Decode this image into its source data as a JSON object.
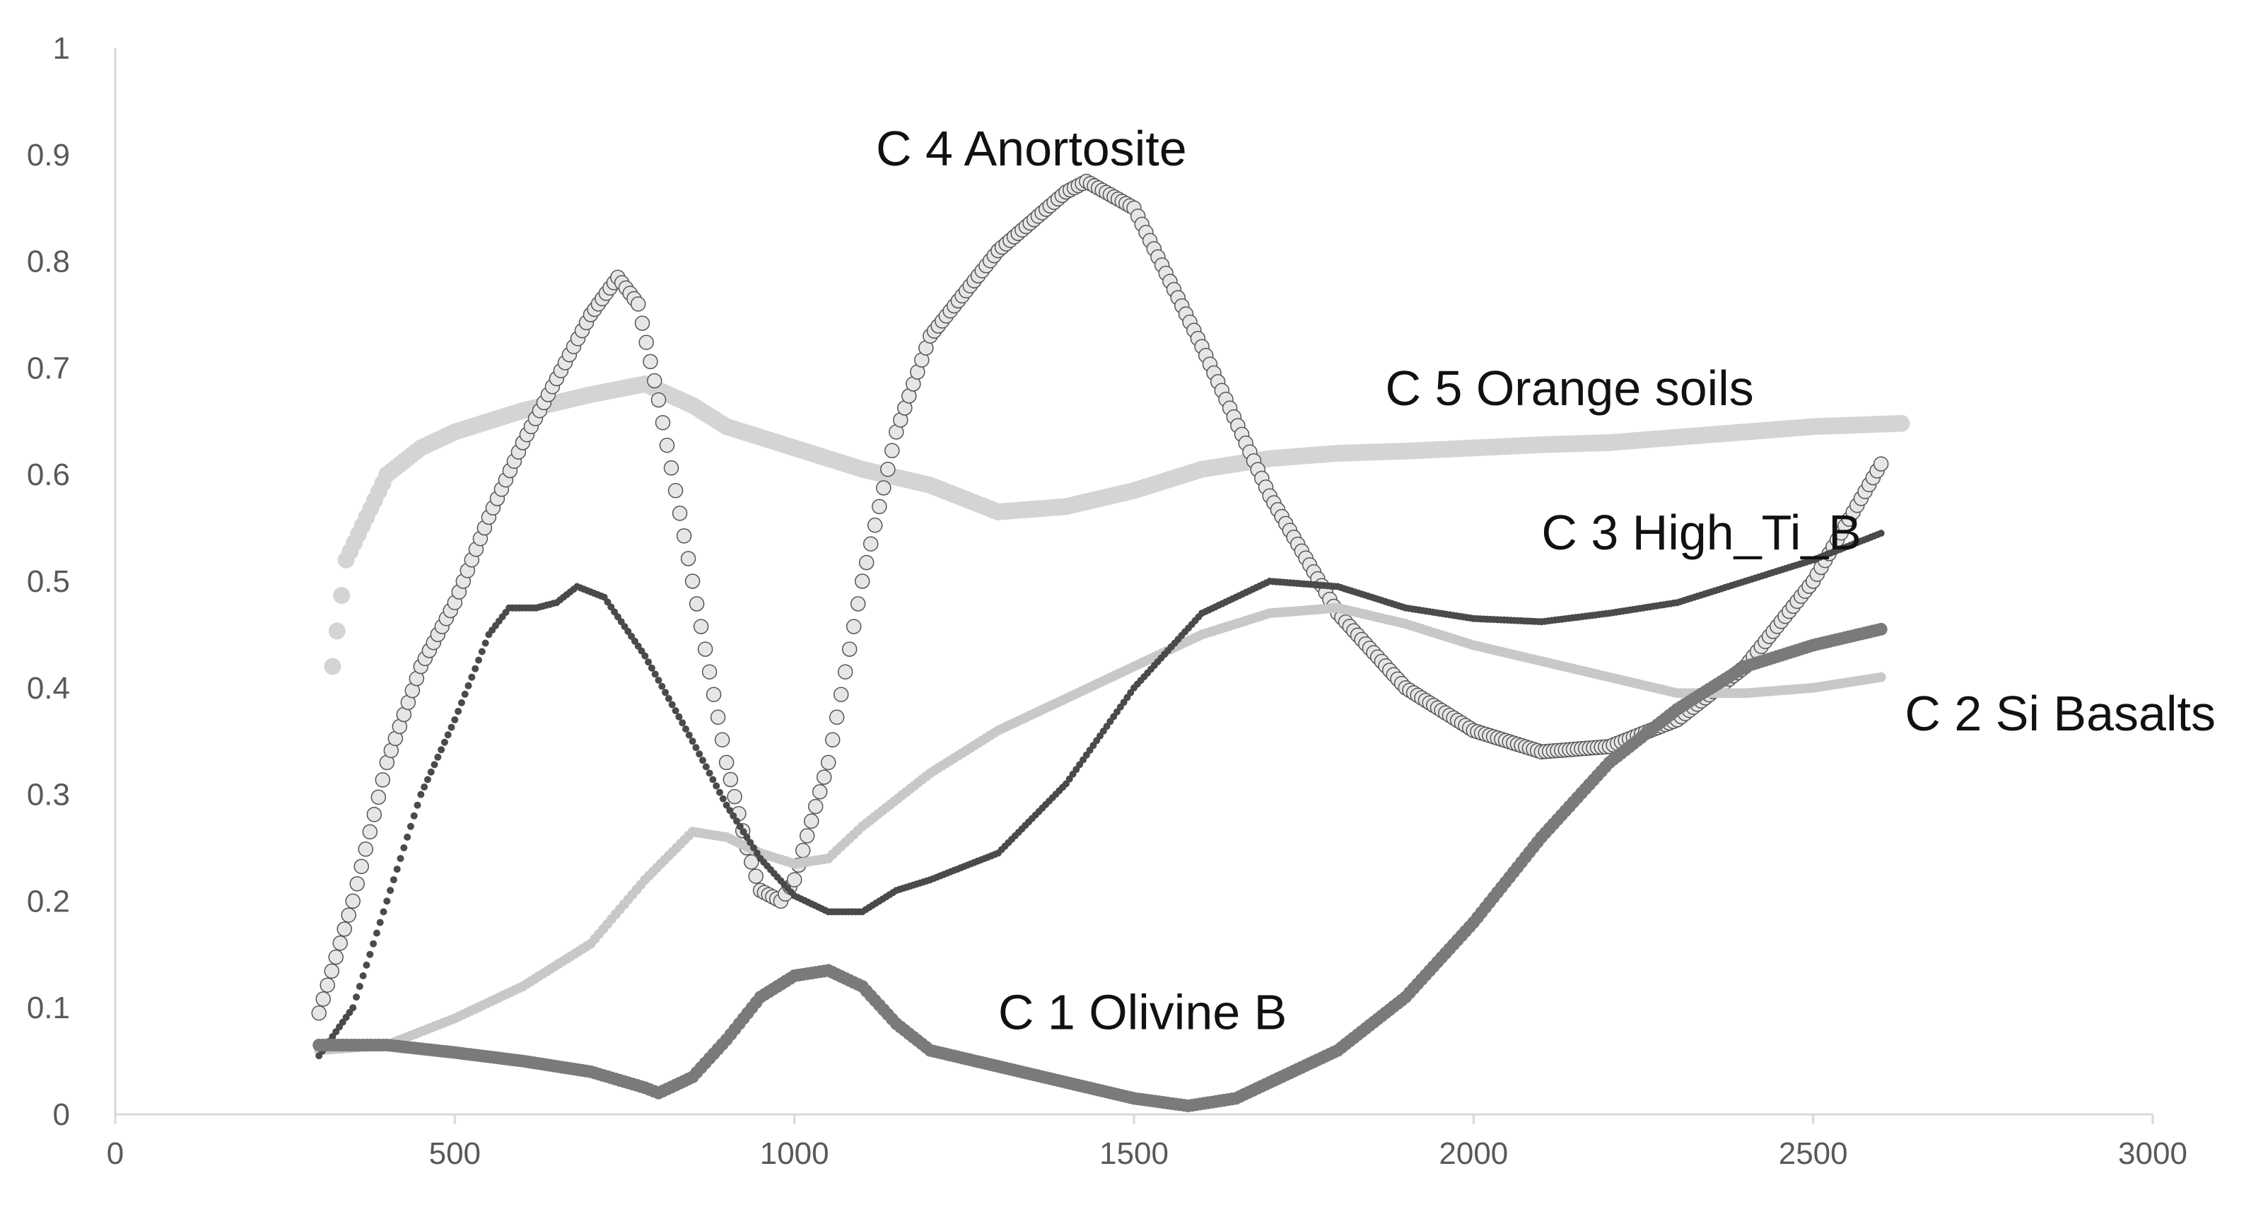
{
  "chart_data": {
    "type": "scatter",
    "title": "",
    "xlabel": "",
    "ylabel": "",
    "xlim": [
      0,
      3000
    ],
    "ylim": [
      0,
      1
    ],
    "grid": false,
    "x_ticks": [
      0,
      500,
      1000,
      1500,
      2000,
      2500,
      3000
    ],
    "y_ticks": [
      0,
      0.1,
      0.2,
      0.3,
      0.4,
      0.5,
      0.6,
      0.7,
      0.8,
      0.9,
      1
    ],
    "x_tick_labels": [
      "0",
      "500",
      "1000",
      "1500",
      "2000",
      "2500",
      "3000"
    ],
    "y_tick_labels": [
      "0",
      "0.1",
      "0.2",
      "0.3",
      "0.4",
      "0.5",
      "0.6",
      "0.7",
      "0.8",
      "0.9",
      "1"
    ],
    "series": [
      {
        "name": "C 1 Olivine B",
        "label": "C 1 Olivine B",
        "label_at": [
          1300,
          0.08
        ],
        "color": "#7a7a7a",
        "points": [
          [
            300,
            0.065
          ],
          [
            400,
            0.065
          ],
          [
            500,
            0.058
          ],
          [
            600,
            0.05
          ],
          [
            700,
            0.04
          ],
          [
            780,
            0.025
          ],
          [
            800,
            0.02
          ],
          [
            850,
            0.035
          ],
          [
            900,
            0.07
          ],
          [
            950,
            0.11
          ],
          [
            1000,
            0.13
          ],
          [
            1050,
            0.135
          ],
          [
            1100,
            0.12
          ],
          [
            1150,
            0.085
          ],
          [
            1200,
            0.06
          ],
          [
            1300,
            0.045
          ],
          [
            1400,
            0.03
          ],
          [
            1500,
            0.015
          ],
          [
            1580,
            0.008
          ],
          [
            1650,
            0.015
          ],
          [
            1700,
            0.03
          ],
          [
            1800,
            0.06
          ],
          [
            1900,
            0.11
          ],
          [
            2000,
            0.18
          ],
          [
            2100,
            0.26
          ],
          [
            2200,
            0.33
          ],
          [
            2300,
            0.38
          ],
          [
            2400,
            0.42
          ],
          [
            2500,
            0.44
          ],
          [
            2600,
            0.455
          ]
        ]
      },
      {
        "name": "C 2 Si Basalts",
        "label": "C 2 Si Basalts",
        "label_at": [
          2635,
          0.36
        ],
        "color": "#c8c8c8",
        "points": [
          [
            300,
            0.06
          ],
          [
            400,
            0.065
          ],
          [
            500,
            0.09
          ],
          [
            600,
            0.12
          ],
          [
            700,
            0.16
          ],
          [
            780,
            0.22
          ],
          [
            850,
            0.265
          ],
          [
            900,
            0.26
          ],
          [
            950,
            0.245
          ],
          [
            1000,
            0.235
          ],
          [
            1050,
            0.24
          ],
          [
            1100,
            0.27
          ],
          [
            1200,
            0.32
          ],
          [
            1300,
            0.36
          ],
          [
            1400,
            0.39
          ],
          [
            1500,
            0.42
          ],
          [
            1600,
            0.45
          ],
          [
            1700,
            0.47
          ],
          [
            1800,
            0.475
          ],
          [
            1900,
            0.46
          ],
          [
            2000,
            0.44
          ],
          [
            2100,
            0.425
          ],
          [
            2200,
            0.41
          ],
          [
            2300,
            0.395
          ],
          [
            2400,
            0.395
          ],
          [
            2500,
            0.4
          ],
          [
            2600,
            0.41
          ]
        ]
      },
      {
        "name": "C 3 High_Ti_B",
        "label": "C 3 High_Ti_B",
        "label_at": [
          2100,
          0.53
        ],
        "color": "#4a4a4a",
        "points": [
          [
            300,
            0.055
          ],
          [
            350,
            0.1
          ],
          [
            400,
            0.2
          ],
          [
            450,
            0.3
          ],
          [
            500,
            0.37
          ],
          [
            550,
            0.45
          ],
          [
            580,
            0.475
          ],
          [
            620,
            0.475
          ],
          [
            650,
            0.48
          ],
          [
            680,
            0.495
          ],
          [
            720,
            0.485
          ],
          [
            780,
            0.43
          ],
          [
            850,
            0.35
          ],
          [
            900,
            0.29
          ],
          [
            950,
            0.24
          ],
          [
            1000,
            0.205
          ],
          [
            1050,
            0.19
          ],
          [
            1100,
            0.19
          ],
          [
            1150,
            0.21
          ],
          [
            1200,
            0.22
          ],
          [
            1300,
            0.245
          ],
          [
            1400,
            0.31
          ],
          [
            1500,
            0.4
          ],
          [
            1600,
            0.47
          ],
          [
            1700,
            0.5
          ],
          [
            1800,
            0.495
          ],
          [
            1900,
            0.475
          ],
          [
            2000,
            0.465
          ],
          [
            2100,
            0.462
          ],
          [
            2200,
            0.47
          ],
          [
            2300,
            0.48
          ],
          [
            2400,
            0.5
          ],
          [
            2500,
            0.52
          ],
          [
            2600,
            0.545
          ]
        ]
      },
      {
        "name": "C 4 Anortosite",
        "label": "C 4 Anortosite",
        "label_at": [
          1120,
          0.89
        ],
        "color": "#9a9a9a",
        "points": [
          [
            300,
            0.095
          ],
          [
            350,
            0.2
          ],
          [
            400,
            0.33
          ],
          [
            450,
            0.42
          ],
          [
            500,
            0.48
          ],
          [
            550,
            0.56
          ],
          [
            600,
            0.63
          ],
          [
            650,
            0.69
          ],
          [
            700,
            0.75
          ],
          [
            740,
            0.785
          ],
          [
            770,
            0.76
          ],
          [
            800,
            0.67
          ],
          [
            850,
            0.5
          ],
          [
            900,
            0.33
          ],
          [
            930,
            0.25
          ],
          [
            950,
            0.21
          ],
          [
            980,
            0.2
          ],
          [
            1000,
            0.22
          ],
          [
            1050,
            0.33
          ],
          [
            1100,
            0.5
          ],
          [
            1150,
            0.64
          ],
          [
            1200,
            0.73
          ],
          [
            1300,
            0.81
          ],
          [
            1400,
            0.865
          ],
          [
            1430,
            0.875
          ],
          [
            1500,
            0.85
          ],
          [
            1600,
            0.72
          ],
          [
            1700,
            0.58
          ],
          [
            1800,
            0.47
          ],
          [
            1900,
            0.4
          ],
          [
            2000,
            0.36
          ],
          [
            2100,
            0.34
          ],
          [
            2200,
            0.345
          ],
          [
            2300,
            0.37
          ],
          [
            2400,
            0.42
          ],
          [
            2500,
            0.5
          ],
          [
            2600,
            0.61
          ]
        ]
      },
      {
        "name": "C 5 Orange soils",
        "label": "C 5 Orange soils",
        "label_at": [
          1870,
          0.665
        ],
        "color": "#d4d4d4",
        "points": [
          [
            320,
            0.42
          ],
          [
            340,
            0.52
          ],
          [
            400,
            0.6
          ],
          [
            450,
            0.625
          ],
          [
            500,
            0.64
          ],
          [
            600,
            0.66
          ],
          [
            700,
            0.675
          ],
          [
            780,
            0.685
          ],
          [
            850,
            0.665
          ],
          [
            900,
            0.645
          ],
          [
            1000,
            0.625
          ],
          [
            1100,
            0.605
          ],
          [
            1200,
            0.59
          ],
          [
            1300,
            0.565
          ],
          [
            1400,
            0.57
          ],
          [
            1500,
            0.585
          ],
          [
            1600,
            0.605
          ],
          [
            1700,
            0.615
          ],
          [
            1800,
            0.62
          ],
          [
            1900,
            0.622
          ],
          [
            2000,
            0.625
          ],
          [
            2100,
            0.628
          ],
          [
            2200,
            0.63
          ],
          [
            2300,
            0.635
          ],
          [
            2400,
            0.64
          ],
          [
            2500,
            0.645
          ],
          [
            2630,
            0.648
          ]
        ]
      }
    ]
  }
}
